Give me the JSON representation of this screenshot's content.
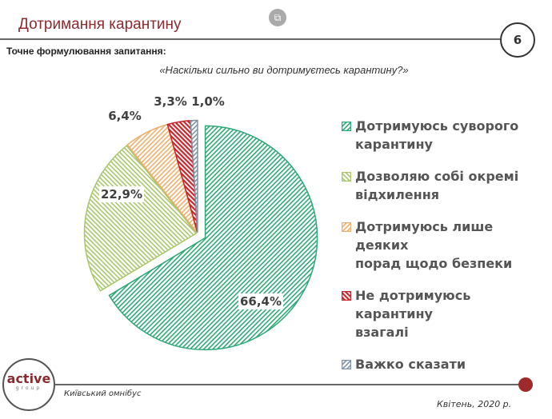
{
  "header": {
    "title": "Дотримання карантину",
    "page_number": "6"
  },
  "subtitle": "Точне формулювання  запитання:",
  "question": "«Наскільки сильно ви дотримуєтесь карантину?»",
  "chart_data": {
    "type": "pie",
    "categories": [
      "Дотримуюсь суворого карантину",
      "Дозволяю собі окремі відхилення",
      "Дотримуюсь лише деяких порад щодо безпеки",
      "Не дотримуюсь карантину взагалі",
      "Важко сказати"
    ],
    "values": [
      66.4,
      22.9,
      6.4,
      3.3,
      1.0
    ],
    "labels": [
      "66,4%",
      "22,9%",
      "6,4%",
      "3,3%",
      "1,0%"
    ],
    "colors": [
      "#2fa878",
      "#a9c66a",
      "#eeae6c",
      "#c8262c",
      "#7f93a6"
    ],
    "fill": "diagonal-hatch",
    "exploded": "Дотримуюсь суворого карантину",
    "legend_placement": "right"
  },
  "legend": [
    {
      "line1": "Дотримуюсь суворого",
      "line2": "карантину"
    },
    {
      "line1": "Дозволяю собі окремі",
      "line2": "відхилення"
    },
    {
      "line1": "Дотримуюсь лише деяких",
      "line2": "порад щодо безпеки"
    },
    {
      "line1": "Не дотримуюсь карантину",
      "line2": "взагалі"
    },
    {
      "line1": "Важко сказати",
      "line2": ""
    }
  ],
  "footer": {
    "logo": "active group",
    "left": "Київський омнібус",
    "right": "Квітень, 2020 р."
  }
}
